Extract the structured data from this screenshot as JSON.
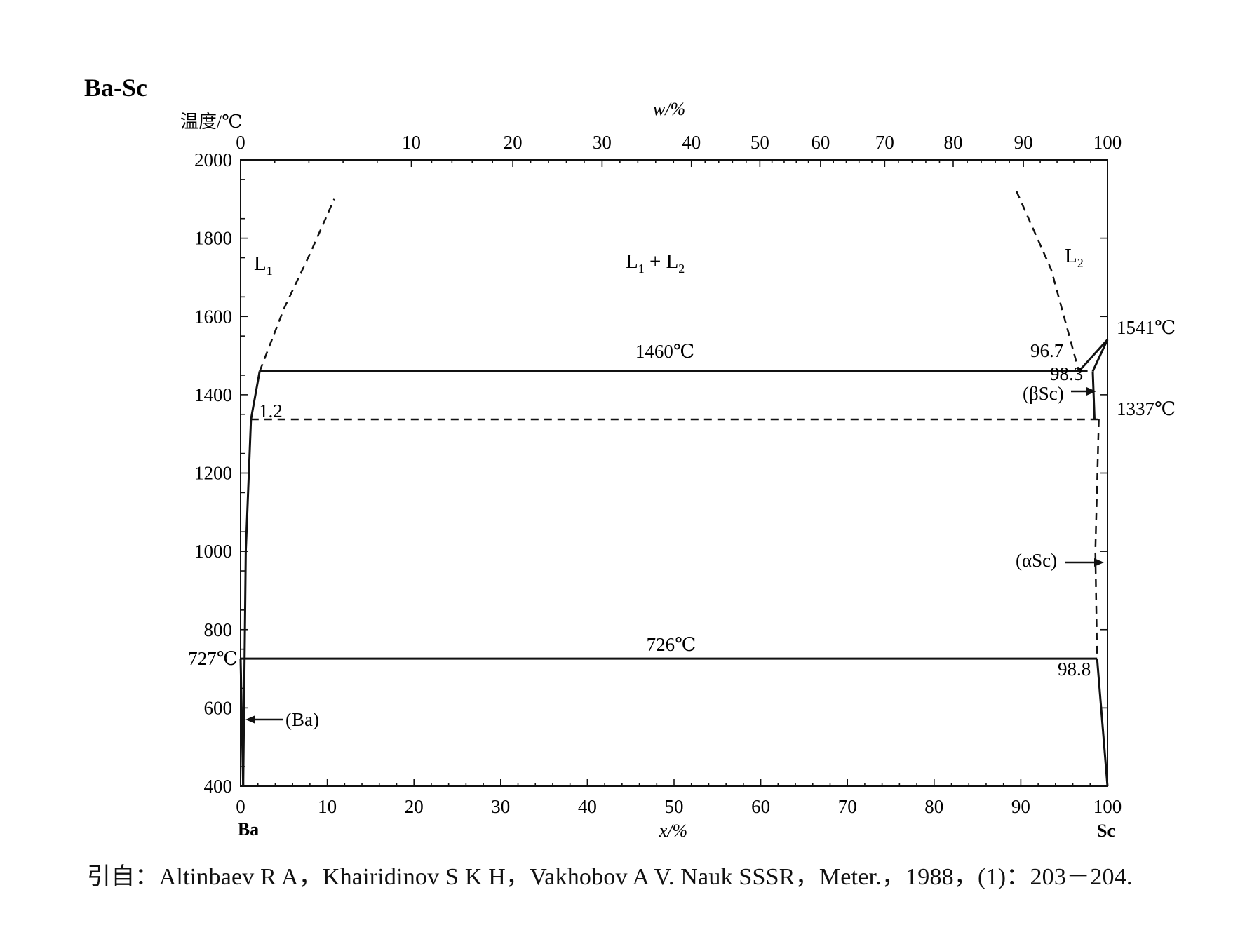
{
  "chart_data": {
    "type": "line",
    "title": "Ba-Sc",
    "ylabel": "温度/℃",
    "xlabel": "x/%",
    "x2label": "w/%",
    "ylim": [
      400,
      2000
    ],
    "xlim": [
      0,
      100
    ],
    "y_ticks": [
      "2000",
      "1800",
      "1600",
      "1400",
      "1200",
      "1000",
      "800",
      "600",
      "400"
    ],
    "y_extra_tick": "727℃",
    "x_ticks": [
      "0",
      "10",
      "20",
      "30",
      "40",
      "50",
      "60",
      "70",
      "80",
      "90",
      "100"
    ],
    "x2_ticks": [
      "0",
      "10",
      "20",
      "30",
      "40",
      "50",
      "60",
      "70",
      "80",
      "90",
      "100"
    ],
    "components": {
      "left": "Ba",
      "right": "Sc"
    },
    "regions": {
      "L1": {
        "text": "L",
        "sub": "1"
      },
      "L1L2": {
        "text": "L",
        "sub1": "1",
        "plus": " + L",
        "sub2": "2"
      },
      "L2": {
        "text": "L",
        "sub": "2"
      }
    },
    "annotations": {
      "t1460": "1460℃",
      "t726": "726℃",
      "t1541": "1541℃",
      "t1337": "1337℃",
      "c96_7": "96.7",
      "c98_3": "98.3",
      "c98_8": "98.8",
      "c1_2": "1.2",
      "betaSc": "(βSc)",
      "alphaSc": "(αSc)",
      "Ba_phase": "(Ba)"
    },
    "lines": {
      "monotectic_1460": {
        "x": [
          2.2,
          97.7
        ],
        "y": [
          1460,
          1460
        ]
      },
      "eutectic_726": {
        "x": [
          0,
          98.8
        ],
        "y": [
          726,
          726
        ]
      },
      "beta_transition_1337": {
        "x": [
          1.2,
          99.0
        ],
        "y": [
          1337,
          1337
        ]
      },
      "L1_boundary_solid": {
        "x": [
          0.3,
          0.6,
          1.2,
          2.2
        ],
        "y": [
          400,
          1000,
          1337,
          1460
        ]
      },
      "L1_boundary_dashed": {
        "x": [
          2.2,
          5.0,
          8.0,
          10.8
        ],
        "y": [
          1460,
          1620,
          1760,
          1900
        ]
      },
      "L2_boundary_dashed": {
        "x": [
          89.5,
          93.5,
          96.7
        ],
        "y": [
          1920,
          1720,
          1460
        ]
      },
      "Sc_liquidus": {
        "x": [
          96.7,
          100
        ],
        "y": [
          1460,
          1541
        ]
      },
      "betaSc_solvus": {
        "x": [
          98.3,
          100
        ],
        "y": [
          1460,
          1541
        ]
      },
      "betaSc_lower": {
        "x": [
          98.3,
          98.5
        ],
        "y": [
          1460,
          1337
        ]
      },
      "alphaSc_solvus_dashed": {
        "x": [
          99.0,
          98.6,
          98.8
        ],
        "y": [
          1337,
          1000,
          726
        ]
      },
      "alphaSc_solid": {
        "x": [
          98.8,
          100
        ],
        "y": [
          726,
          400
        ]
      },
      "Ba_solvus": {
        "x": [
          0,
          0.3
        ],
        "y": [
          726,
          400
        ]
      }
    }
  },
  "citation": "引自：Altinbaev R A，Khairidinov S K H，Vakhobov A V. Nauk SSSR，Meter.，1988，(1)：203－204."
}
